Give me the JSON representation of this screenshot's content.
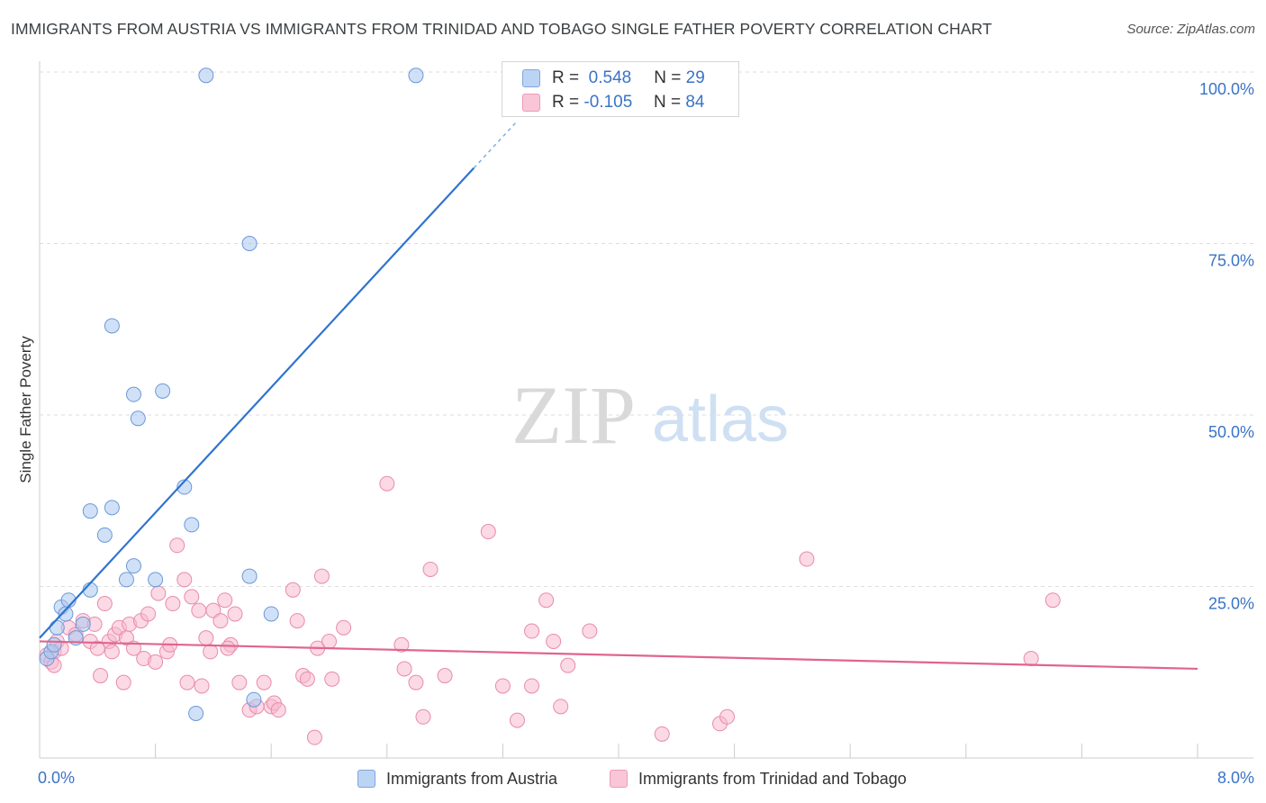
{
  "title": "IMMIGRANTS FROM AUSTRIA VS IMMIGRANTS FROM TRINIDAD AND TOBAGO SINGLE FATHER POVERTY CORRELATION CHART",
  "source": "Source: ZipAtlas.com",
  "watermark": {
    "zip": "ZIP",
    "atlas": "atlas"
  },
  "legend": {
    "austria": {
      "r_label": "R =",
      "r_value": "0.548",
      "n_label": "N =",
      "n_value": "29"
    },
    "trinidad": {
      "r_label": "R =",
      "r_value": "-0.105",
      "n_label": "N =",
      "n_value": "84"
    }
  },
  "colors": {
    "austria_fill": "#aac8f0",
    "austria_stroke": "#6a98d8",
    "austria_line": "#2f73d0",
    "trinidad_fill": "#f7b9cf",
    "trinidad_stroke": "#e98aac",
    "trinidad_line": "#e0648e",
    "axis_text": "#3a73c8",
    "grid": "#dddddd"
  },
  "chart_data": {
    "type": "scatter",
    "title": "IMMIGRANTS FROM AUSTRIA VS IMMIGRANTS FROM TRINIDAD AND TOBAGO SINGLE FATHER POVERTY CORRELATION CHART",
    "xlabel": "",
    "ylabel": "Single Father Poverty",
    "xlim": [
      0,
      8
    ],
    "ylim": [
      0,
      100
    ],
    "x_tick_labels": [
      "0.0%",
      "8.0%"
    ],
    "y_tick_labels": [
      "25.0%",
      "50.0%",
      "75.0%",
      "100.0%"
    ],
    "y_ticks": [
      25,
      50,
      75,
      100
    ],
    "series": [
      {
        "name": "Immigrants from Austria",
        "r": 0.548,
        "n": 29,
        "trend": {
          "x0": 0.0,
          "y0": 17.5,
          "x1": 3.0,
          "y1": 86.0,
          "dash_to_x": 3.3
        },
        "points": [
          [
            0.05,
            14.5
          ],
          [
            0.08,
            15.5
          ],
          [
            0.1,
            16.5
          ],
          [
            0.12,
            19.0
          ],
          [
            0.15,
            22.0
          ],
          [
            0.18,
            21.0
          ],
          [
            0.2,
            23.0
          ],
          [
            0.25,
            17.5
          ],
          [
            0.3,
            19.5
          ],
          [
            0.35,
            24.5
          ],
          [
            0.35,
            36.0
          ],
          [
            0.45,
            32.5
          ],
          [
            0.5,
            36.5
          ],
          [
            0.5,
            63.0
          ],
          [
            0.6,
            26.0
          ],
          [
            0.65,
            28.0
          ],
          [
            0.65,
            53.0
          ],
          [
            0.68,
            49.5
          ],
          [
            0.8,
            26.0
          ],
          [
            0.85,
            53.5
          ],
          [
            1.0,
            39.5
          ],
          [
            1.05,
            34.0
          ],
          [
            1.08,
            6.5
          ],
          [
            1.15,
            99.5
          ],
          [
            1.45,
            26.5
          ],
          [
            1.45,
            75.0
          ],
          [
            1.48,
            8.5
          ],
          [
            1.6,
            21.0
          ],
          [
            2.6,
            99.5
          ]
        ]
      },
      {
        "name": "Immigrants from Trinidad and Tobago",
        "r": -0.105,
        "n": 84,
        "trend": {
          "x0": 0.0,
          "y0": 17.0,
          "x1": 8.0,
          "y1": 13.0
        },
        "points": [
          [
            0.05,
            15.0
          ],
          [
            0.08,
            14.0
          ],
          [
            0.1,
            15.5
          ],
          [
            0.12,
            17.0
          ],
          [
            0.15,
            16.0
          ],
          [
            0.2,
            19.0
          ],
          [
            0.25,
            18.0
          ],
          [
            0.3,
            20.0
          ],
          [
            0.35,
            17.0
          ],
          [
            0.38,
            19.5
          ],
          [
            0.42,
            12.0
          ],
          [
            0.45,
            22.5
          ],
          [
            0.48,
            17.0
          ],
          [
            0.5,
            15.5
          ],
          [
            0.52,
            18.0
          ],
          [
            0.55,
            19.0
          ],
          [
            0.58,
            11.0
          ],
          [
            0.6,
            17.5
          ],
          [
            0.62,
            19.5
          ],
          [
            0.65,
            16.0
          ],
          [
            0.7,
            20.0
          ],
          [
            0.72,
            14.5
          ],
          [
            0.75,
            21.0
          ],
          [
            0.8,
            14.0
          ],
          [
            0.82,
            24.0
          ],
          [
            0.88,
            15.5
          ],
          [
            0.9,
            16.5
          ],
          [
            0.92,
            22.5
          ],
          [
            0.95,
            31.0
          ],
          [
            1.0,
            26.0
          ],
          [
            1.02,
            11.0
          ],
          [
            1.05,
            23.5
          ],
          [
            1.1,
            21.5
          ],
          [
            1.12,
            10.5
          ],
          [
            1.15,
            17.5
          ],
          [
            1.18,
            15.5
          ],
          [
            1.2,
            21.5
          ],
          [
            1.25,
            20.0
          ],
          [
            1.28,
            23.0
          ],
          [
            1.32,
            16.5
          ],
          [
            1.35,
            21.0
          ],
          [
            1.38,
            11.0
          ],
          [
            1.45,
            7.0
          ],
          [
            1.5,
            7.5
          ],
          [
            1.55,
            11.0
          ],
          [
            1.6,
            7.5
          ],
          [
            1.62,
            8.0
          ],
          [
            1.65,
            7.0
          ],
          [
            1.75,
            24.5
          ],
          [
            1.78,
            20.0
          ],
          [
            1.82,
            12.0
          ],
          [
            1.85,
            11.5
          ],
          [
            1.9,
            3.0
          ],
          [
            1.92,
            16.0
          ],
          [
            1.95,
            26.5
          ],
          [
            2.0,
            17.0
          ],
          [
            2.02,
            11.5
          ],
          [
            2.1,
            19.0
          ],
          [
            2.4,
            40.0
          ],
          [
            2.5,
            16.5
          ],
          [
            2.52,
            13.0
          ],
          [
            2.6,
            11.0
          ],
          [
            2.65,
            6.0
          ],
          [
            2.7,
            27.5
          ],
          [
            2.8,
            12.0
          ],
          [
            3.1,
            33.0
          ],
          [
            3.2,
            10.5
          ],
          [
            3.3,
            5.5
          ],
          [
            3.4,
            18.5
          ],
          [
            3.4,
            10.5
          ],
          [
            3.5,
            23.0
          ],
          [
            3.55,
            17.0
          ],
          [
            3.6,
            7.5
          ],
          [
            3.65,
            13.5
          ],
          [
            3.8,
            18.5
          ],
          [
            4.3,
            3.5
          ],
          [
            4.7,
            5.0
          ],
          [
            4.75,
            6.0
          ],
          [
            5.3,
            29.0
          ],
          [
            6.85,
            14.5
          ],
          [
            7.0,
            23.0
          ],
          [
            0.1,
            13.5
          ],
          [
            0.4,
            16.0
          ],
          [
            1.3,
            16.0
          ]
        ]
      }
    ],
    "legend_labels": [
      "Immigrants from Austria",
      "Immigrants from Trinidad and Tobago"
    ]
  }
}
